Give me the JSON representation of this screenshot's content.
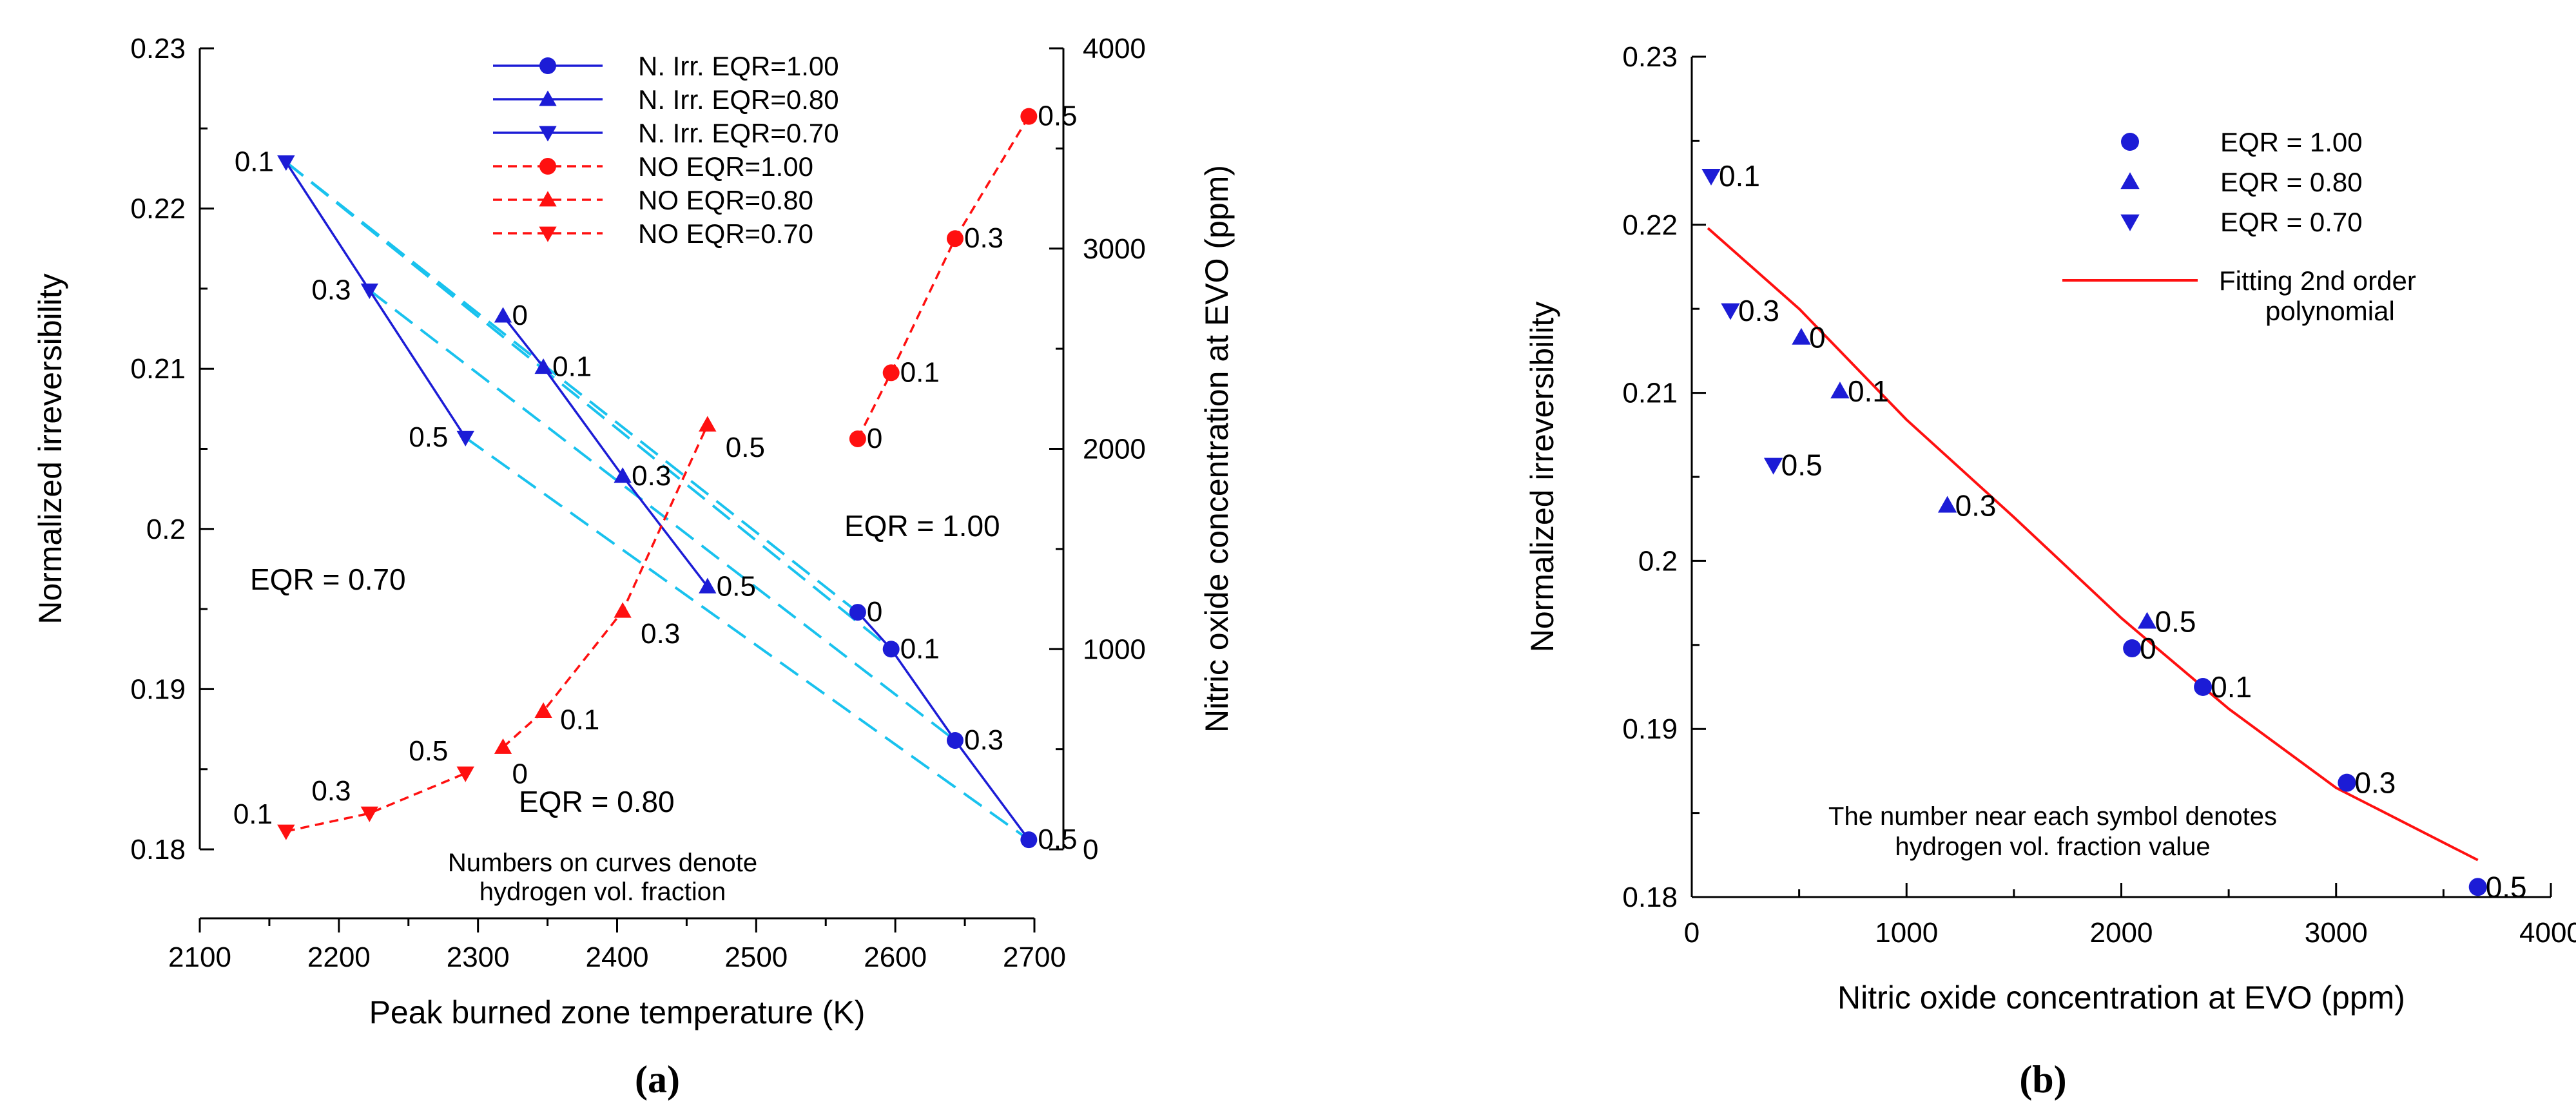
{
  "colors": {
    "blue": "#1c1cd6",
    "red": "#ff1010",
    "cyan": "#19c2ee",
    "black": "#000000"
  },
  "chart_data": [
    {
      "id": "a",
      "type": "line",
      "caption_letter": "a",
      "xlabel": "Peak burned zone temperature (K)",
      "ylabel_left": "Normalized irreversibility",
      "ylabel_right": "Nitric oxide concentration at EVO (ppm)",
      "xlim": [
        2100,
        2700
      ],
      "ylim_left": [
        0.18,
        0.23
      ],
      "ylim_right": [
        0,
        4000
      ],
      "xticks": [
        "2100",
        "2200",
        "2300",
        "2400",
        "2500",
        "2600",
        "2700"
      ],
      "yticks_left": [
        "0.18",
        "0.19",
        "0.2",
        "0.21",
        "0.22",
        "0.23"
      ],
      "yticks_right": [
        "0",
        "1000",
        "2000",
        "3000",
        "4000"
      ],
      "legend_position": "top-center",
      "series": [
        {
          "name": "N. Irr.  EQR=1.00",
          "axis": "left",
          "color": "blue",
          "marker": "circle",
          "dash": "solid",
          "x": [
            2573,
            2597,
            2643,
            2696
          ],
          "y": [
            0.1948,
            0.1925,
            0.1868,
            0.1806
          ],
          "labels": [
            "0",
            "0.1",
            "0.3",
            "0.5"
          ]
        },
        {
          "name": "N. Irr.  EQR=0.80",
          "axis": "left",
          "color": "blue",
          "marker": "triangle-up",
          "dash": "solid",
          "x": [
            2318,
            2347,
            2404,
            2465
          ],
          "y": [
            0.2133,
            0.2101,
            0.2033,
            0.1964
          ],
          "labels": [
            "0",
            "0.1",
            "0.3",
            "0.5"
          ]
        },
        {
          "name": "N. Irr.  EQR=0.70",
          "axis": "left",
          "color": "blue",
          "marker": "triangle-down",
          "dash": "solid",
          "x": [
            2162,
            2222,
            2291
          ],
          "y": [
            0.2229,
            0.2149,
            0.2057
          ],
          "labels": [
            "0.1",
            "0.3",
            "0.5"
          ]
        },
        {
          "name": "NO  EQR=1.00",
          "axis": "right",
          "color": "red",
          "marker": "circle",
          "dash": "dashed",
          "x": [
            2573,
            2597,
            2643,
            2696
          ],
          "y": [
            2050,
            2380,
            3050,
            3660
          ],
          "labels": [
            "0",
            "0.1",
            "0.3",
            "0.5"
          ]
        },
        {
          "name": "NO  EQR=0.80",
          "axis": "right",
          "color": "red",
          "marker": "triangle-up",
          "dash": "dashed",
          "x": [
            2318,
            2347,
            2404,
            2465
          ],
          "y": [
            510,
            690,
            1190,
            2120
          ],
          "labels": [
            "0",
            "0.1",
            "0.3",
            "0.5"
          ]
        },
        {
          "name": "NO  EQR=0.70",
          "axis": "right",
          "color": "red",
          "marker": "triangle-down",
          "dash": "dashed",
          "x": [
            2162,
            2222,
            2291
          ],
          "y": [
            90,
            180,
            380
          ],
          "labels": [
            "0.1",
            "0.3",
            "0.5"
          ]
        }
      ],
      "connectors": [
        {
          "from": [
            2162,
            0.2229
          ],
          "to": [
            2573,
            0.1948
          ]
        },
        {
          "from": [
            2162,
            0.2229
          ],
          "to": [
            2597,
            0.1925
          ]
        },
        {
          "from": [
            2222,
            0.2149
          ],
          "to": [
            2643,
            0.1868
          ]
        },
        {
          "from": [
            2291,
            0.2057
          ],
          "to": [
            2696,
            0.1806
          ]
        }
      ],
      "annotations": [
        "EQR = 1.00",
        "EQR = 0.70",
        "EQR = 0.80"
      ],
      "note_lines": [
        "Numbers on curves denote",
        "hydrogen vol. fraction"
      ]
    },
    {
      "id": "b",
      "type": "scatter",
      "caption_letter": "b",
      "xlabel": "Nitric oxide concentration at EVO (ppm)",
      "ylabel": "Normalized irreversibility",
      "xlim": [
        0,
        4000
      ],
      "ylim": [
        0.18,
        0.23
      ],
      "xticks": [
        "0",
        "1000",
        "2000",
        "3000",
        "4000"
      ],
      "yticks": [
        "0.18",
        "0.19",
        "0.2",
        "0.21",
        "0.22",
        "0.23"
      ],
      "legend_position": "top-right",
      "series": [
        {
          "name": "EQR = 1.00",
          "color": "blue",
          "marker": "circle",
          "x": [
            2050,
            2380,
            3050,
            3660
          ],
          "y": [
            0.1948,
            0.1925,
            0.1868,
            0.1806
          ],
          "labels": [
            "0",
            "0.1",
            "0.3",
            "0.5"
          ]
        },
        {
          "name": "EQR = 0.80",
          "color": "blue",
          "marker": "triangle-up",
          "x": [
            510,
            690,
            1190,
            2120
          ],
          "y": [
            0.2133,
            0.2101,
            0.2033,
            0.1964
          ],
          "labels": [
            "0",
            "0.1",
            "0.3",
            "0.5"
          ]
        },
        {
          "name": "EQR = 0.70",
          "color": "blue",
          "marker": "triangle-down",
          "x": [
            90,
            180,
            380
          ],
          "y": [
            0.2229,
            0.2149,
            0.2057
          ],
          "labels": [
            "0.1",
            "0.3",
            "0.5"
          ]
        }
      ],
      "fit": {
        "name": "Fitting 2nd order polynomial",
        "legend_lines": [
          "Fitting 2nd order",
          "polynomial"
        ],
        "color": "red",
        "x": [
          75,
          500,
          1000,
          1500,
          2000,
          2500,
          3000,
          3660
        ],
        "y": [
          0.2198,
          0.215,
          0.2084,
          0.2026,
          0.1966,
          0.1912,
          0.1865,
          0.1822
        ]
      },
      "note_lines": [
        "The number near each symbol denotes",
        "hydrogen vol. fraction value"
      ]
    }
  ]
}
